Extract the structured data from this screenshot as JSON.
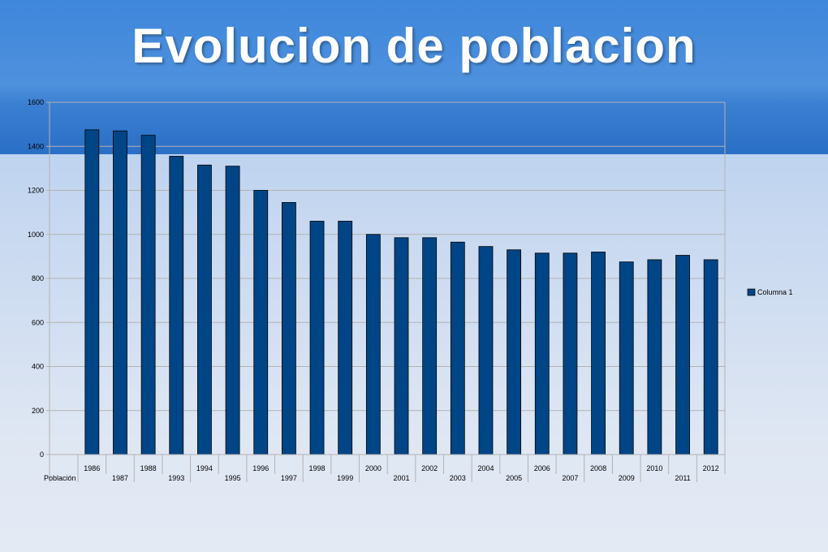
{
  "slide": {
    "title": "Evolucion de poblacion"
  },
  "colors": {
    "bar": "#004586",
    "header": "#3f87dc"
  },
  "chart_data": {
    "type": "bar",
    "title": "",
    "xlabel": "",
    "ylabel": "",
    "row_label": "Población",
    "categories": [
      "1986",
      "1987",
      "1988",
      "1993",
      "1994",
      "1995",
      "1996",
      "1997",
      "1998",
      "1999",
      "2000",
      "2001",
      "2002",
      "2003",
      "2004",
      "2005",
      "2006",
      "2007",
      "2008",
      "2009",
      "2010",
      "2011",
      "2012"
    ],
    "series": [
      {
        "name": "Columna 1",
        "values": [
          1475,
          1470,
          1450,
          1355,
          1315,
          1310,
          1200,
          1145,
          1060,
          1060,
          1000,
          985,
          985,
          965,
          945,
          930,
          915,
          915,
          920,
          875,
          885,
          905,
          885
        ]
      }
    ],
    "ylim": [
      0,
      1600
    ],
    "yticks": [
      0,
      200,
      400,
      600,
      800,
      1000,
      1200,
      1400,
      1600
    ],
    "grid": true,
    "legend": "right"
  }
}
